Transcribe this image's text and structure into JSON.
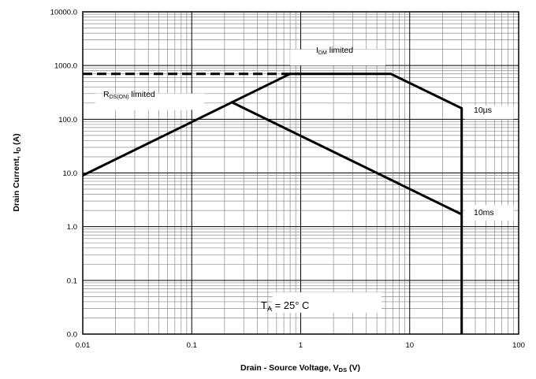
{
  "chart_data": {
    "type": "line",
    "xlabel": {
      "main": "Drain - Source Voltage, V",
      "sub": "DS",
      "suffix": " (V)"
    },
    "ylabel": {
      "main": "Drain Current, I",
      "sub": "D",
      "suffix": " (A)"
    },
    "x_scale": "log",
    "y_scale": "log",
    "xlim": [
      0.01,
      100
    ],
    "ylim": [
      0.01,
      10000
    ],
    "x_ticks": [
      0.01,
      0.1,
      1,
      10,
      100
    ],
    "x_tick_labels": [
      "0.01",
      "0.1",
      "1",
      "10",
      "100"
    ],
    "y_ticks": [
      0.01,
      0.1,
      1,
      10,
      100,
      1000,
      10000
    ],
    "y_tick_labels": [
      "0.0",
      "0.1",
      "1.0",
      "10.0",
      "100.0",
      "1000.0",
      "10000.0"
    ],
    "grid": true,
    "series": [
      {
        "style": "dashed",
        "x": [
          0.01,
          1.0
        ],
        "y": [
          700,
          700
        ]
      },
      {
        "style": "solid",
        "x": [
          0.01,
          0.8,
          6.7,
          30,
          30
        ],
        "y": [
          9,
          700,
          700,
          160,
          0.01
        ]
      },
      {
        "style": "solid",
        "x": [
          0.23,
          30
        ],
        "y": [
          210,
          1.7
        ]
      }
    ],
    "annotations": {
      "idm": {
        "main": "I",
        "sub": "DM",
        "suffix": " limited"
      },
      "rds": {
        "main": "R",
        "sub": "DS(ON)",
        "suffix": " limited"
      },
      "t10us": "10µs",
      "t10ms": "10ms",
      "temp": {
        "main": "T",
        "sub": "A",
        "suffix": " = 25° C"
      }
    }
  }
}
